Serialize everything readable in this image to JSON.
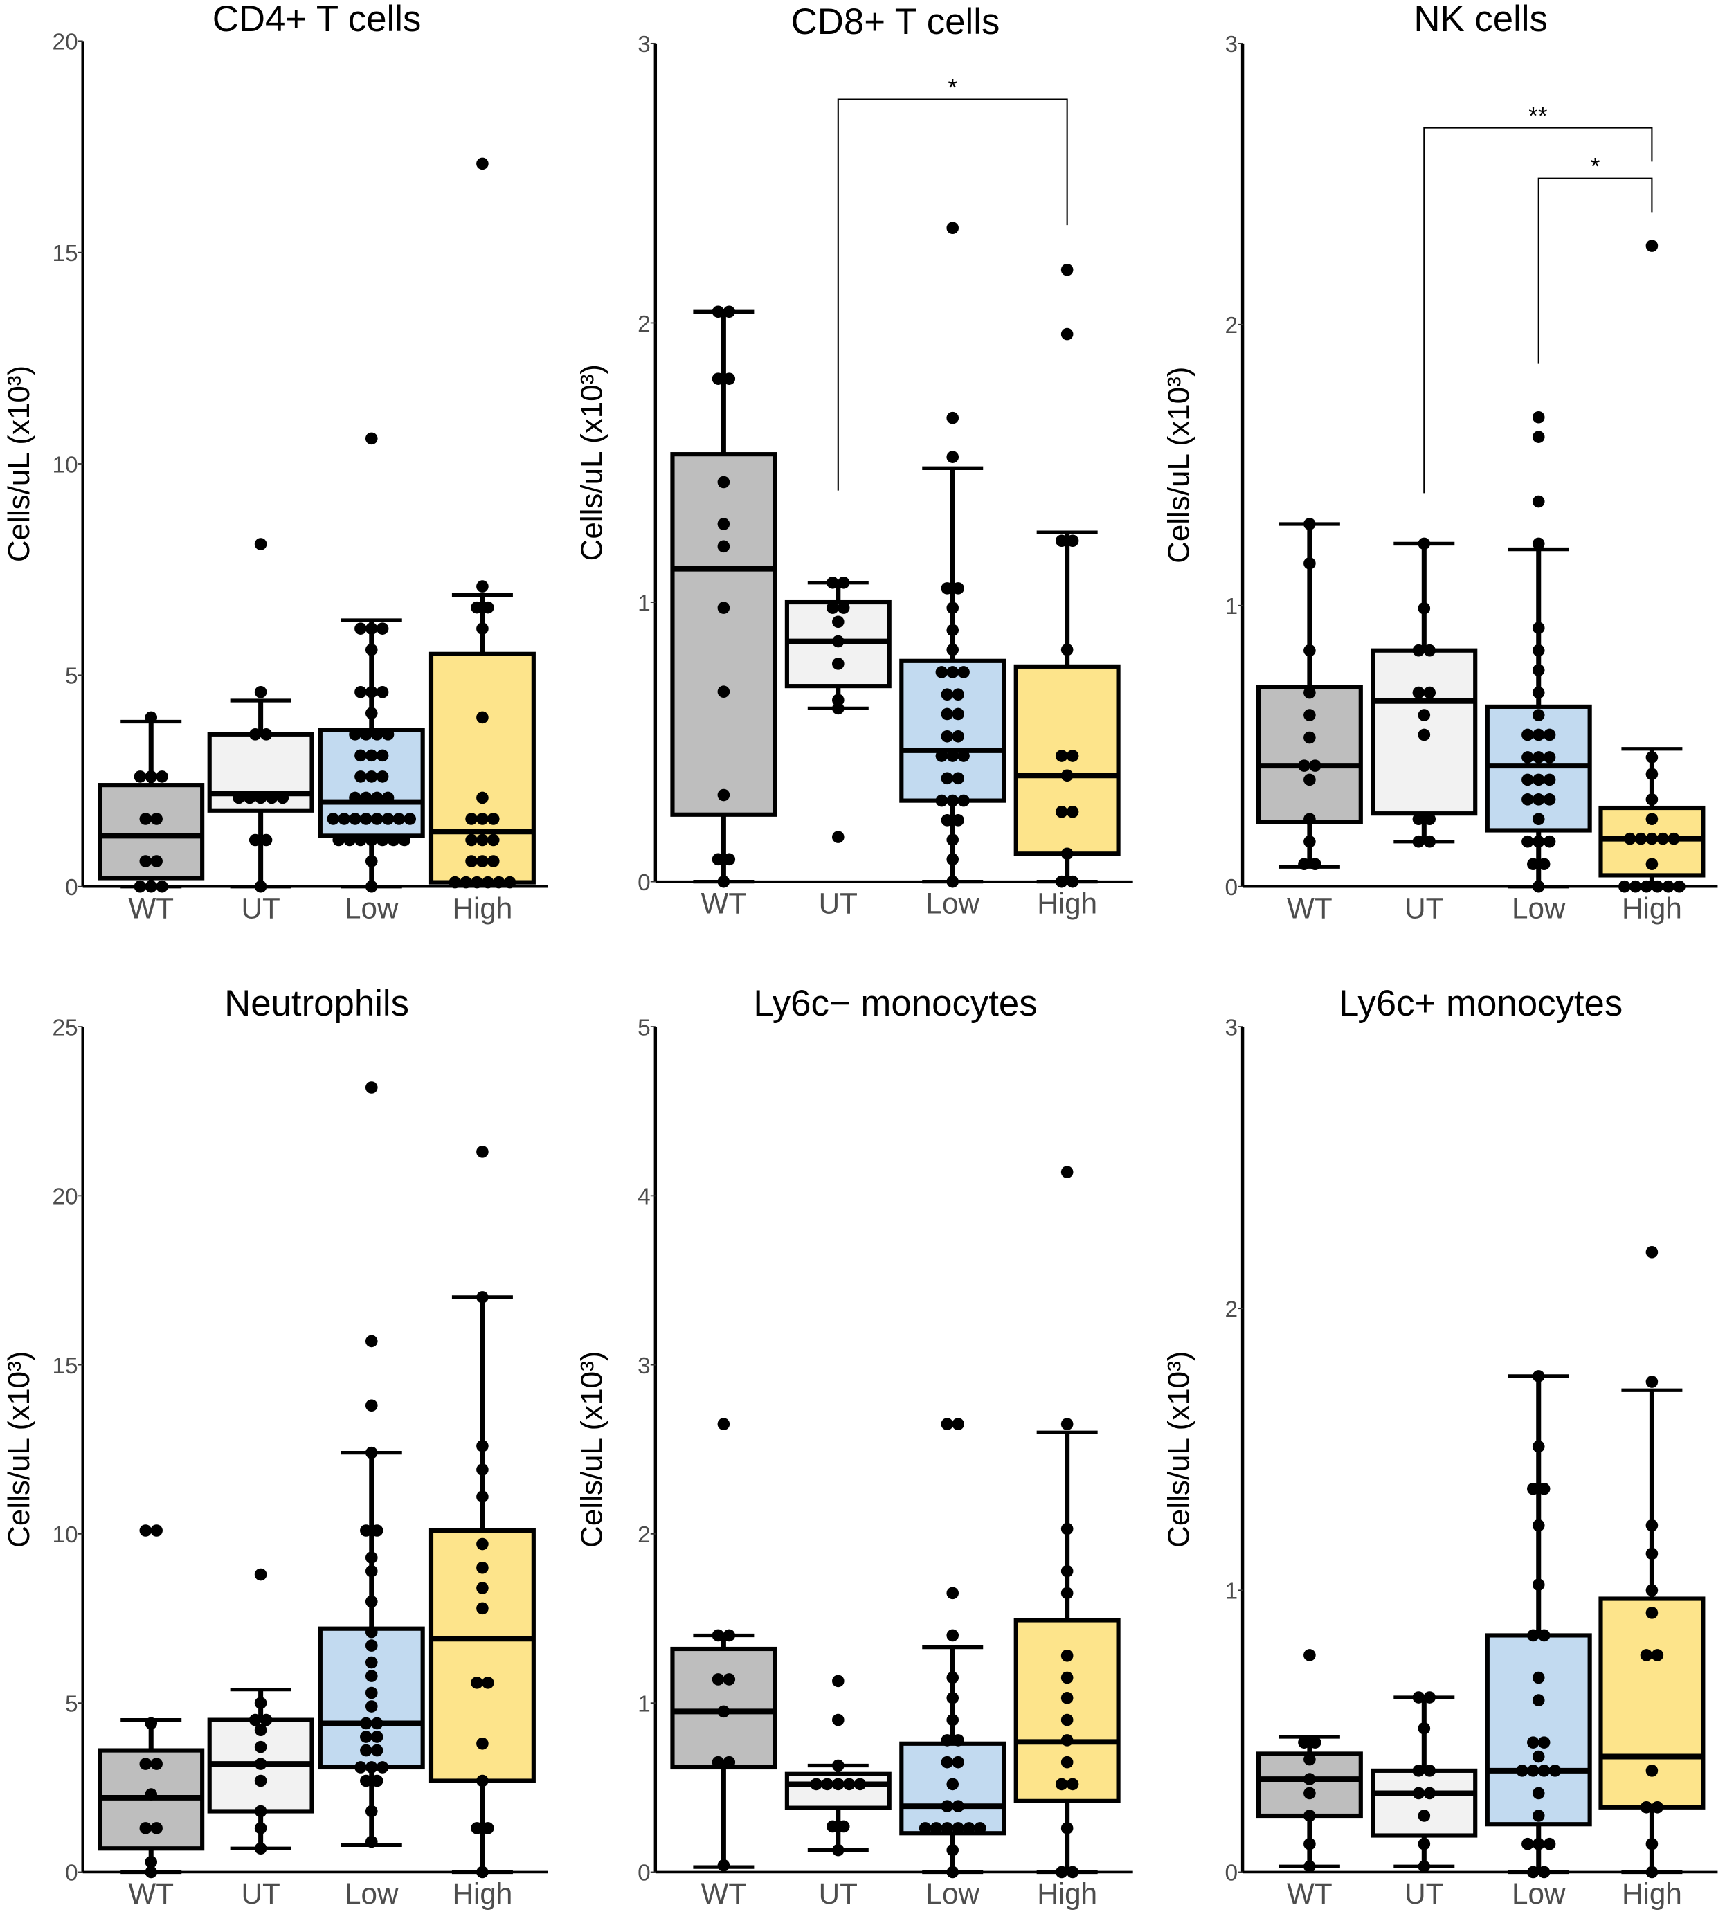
{
  "chart_data": [
    {
      "type": "box",
      "title": "CD4+ T cells",
      "ylabel": "Cells/uL (x10³)",
      "xlabel": "",
      "ylim": [
        0,
        20
      ],
      "yticks": [
        0,
        5,
        10,
        15,
        20
      ],
      "categories": [
        "WT",
        "UT",
        "Low",
        "High"
      ],
      "groups": [
        {
          "name": "WT",
          "q1": 0.2,
          "median": 1.2,
          "q3": 2.4,
          "whisker_low": 0,
          "whisker_high": 3.9,
          "points": [
            0,
            0,
            0,
            0.6,
            0.6,
            1.6,
            1.6,
            2.6,
            2.6,
            2.6,
            4.0
          ]
        },
        {
          "name": "UT",
          "q1": 1.8,
          "median": 2.2,
          "q3": 3.6,
          "whisker_low": 0,
          "whisker_high": 4.4,
          "points": [
            0,
            1.1,
            1.1,
            2.1,
            2.1,
            2.1,
            2.1,
            2.1,
            3.6,
            3.6,
            4.6,
            8.1
          ]
        },
        {
          "name": "Low",
          "q1": 1.2,
          "median": 2.0,
          "q3": 3.7,
          "whisker_low": 0,
          "whisker_high": 6.3,
          "points": [
            0,
            0.6,
            1.1,
            1.1,
            1.1,
            1.1,
            1.1,
            1.1,
            1.1,
            1.6,
            1.6,
            1.6,
            1.6,
            1.6,
            1.6,
            1.6,
            1.6,
            2.1,
            2.1,
            2.1,
            2.1,
            2.6,
            2.6,
            2.6,
            3.1,
            3.1,
            3.1,
            3.6,
            3.6,
            3.6,
            3.6,
            4.1,
            4.6,
            4.6,
            4.6,
            5.6,
            6.1,
            6.1,
            6.1,
            10.6
          ]
        },
        {
          "name": "High",
          "q1": 0.1,
          "median": 1.3,
          "q3": 5.5,
          "whisker_low": 0.1,
          "whisker_high": 6.9,
          "points": [
            0.1,
            0.1,
            0.1,
            0.1,
            0.1,
            0.1,
            0.6,
            0.6,
            0.6,
            1.1,
            1.1,
            1.1,
            1.6,
            1.6,
            1.6,
            2.1,
            4.0,
            6.1,
            6.6,
            6.6,
            7.1,
            17.1
          ]
        }
      ],
      "significance": []
    },
    {
      "type": "box",
      "title": "CD8+ T cells",
      "ylabel": "Cells/uL (x10³)",
      "xlabel": "",
      "ylim": [
        0,
        3
      ],
      "yticks": [
        0,
        1,
        2,
        3
      ],
      "categories": [
        "WT",
        "UT",
        "Low",
        "High"
      ],
      "groups": [
        {
          "name": "WT",
          "q1": 0.24,
          "median": 1.12,
          "q3": 1.53,
          "whisker_low": 0,
          "whisker_high": 2.04,
          "points": [
            0,
            0.08,
            0.08,
            0.31,
            0.68,
            0.98,
            1.2,
            1.28,
            1.43,
            1.8,
            1.8,
            2.04,
            2.04
          ]
        },
        {
          "name": "UT",
          "q1": 0.7,
          "median": 0.86,
          "q3": 1.0,
          "whisker_low": 0.62,
          "whisker_high": 1.07,
          "points": [
            0.16,
            0.62,
            0.65,
            0.78,
            0.86,
            0.93,
            0.98,
            0.98,
            1.07,
            1.07
          ]
        },
        {
          "name": "Low",
          "q1": 0.29,
          "median": 0.47,
          "q3": 0.79,
          "whisker_low": 0,
          "whisker_high": 1.48,
          "points": [
            0,
            0.08,
            0.15,
            0.22,
            0.22,
            0.29,
            0.29,
            0.29,
            0.37,
            0.37,
            0.45,
            0.45,
            0.45,
            0.52,
            0.52,
            0.6,
            0.6,
            0.67,
            0.67,
            0.75,
            0.75,
            0.75,
            0.83,
            0.9,
            0.98,
            1.05,
            1.05,
            1.52,
            1.66,
            2.34
          ]
        },
        {
          "name": "High",
          "q1": 0.1,
          "median": 0.38,
          "q3": 0.77,
          "whisker_low": 0,
          "whisker_high": 1.25,
          "points": [
            0,
            0,
            0.1,
            0.25,
            0.25,
            0.38,
            0.45,
            0.45,
            0.83,
            1.22,
            1.22,
            1.96,
            2.19
          ]
        }
      ],
      "significance": [
        {
          "from": "UT",
          "to": "High",
          "label": "*",
          "y": 2.8,
          "drop_from": 1.4,
          "drop_to": 2.35
        }
      ]
    },
    {
      "type": "box",
      "title": "NK cells",
      "ylabel": "Cells/uL (x10³)",
      "xlabel": "",
      "ylim": [
        0,
        3
      ],
      "yticks": [
        0,
        1,
        2,
        3
      ],
      "categories": [
        "WT",
        "UT",
        "Low",
        "High"
      ],
      "groups": [
        {
          "name": "WT",
          "q1": 0.23,
          "median": 0.43,
          "q3": 0.71,
          "whisker_low": 0.07,
          "whisker_high": 1.29,
          "points": [
            0.08,
            0.08,
            0.16,
            0.24,
            0.38,
            0.43,
            0.43,
            0.53,
            0.61,
            0.69,
            0.84,
            1.15,
            1.29
          ]
        },
        {
          "name": "UT",
          "q1": 0.26,
          "median": 0.66,
          "q3": 0.84,
          "whisker_low": 0.16,
          "whisker_high": 1.22,
          "points": [
            0.16,
            0.16,
            0.24,
            0.24,
            0.54,
            0.61,
            0.69,
            0.69,
            0.84,
            0.84,
            0.99,
            1.22
          ]
        },
        {
          "name": "Low",
          "q1": 0.2,
          "median": 0.43,
          "q3": 0.64,
          "whisker_low": 0,
          "whisker_high": 1.2,
          "points": [
            0,
            0.08,
            0.08,
            0.16,
            0.16,
            0.16,
            0.24,
            0.31,
            0.31,
            0.31,
            0.38,
            0.38,
            0.38,
            0.46,
            0.46,
            0.46,
            0.54,
            0.54,
            0.54,
            0.61,
            0.69,
            0.77,
            0.84,
            0.92,
            1.22,
            1.37,
            1.6,
            1.67
          ]
        },
        {
          "name": "High",
          "q1": 0.04,
          "median": 0.17,
          "q3": 0.28,
          "whisker_low": 0,
          "whisker_high": 0.49,
          "points": [
            0,
            0,
            0,
            0,
            0,
            0,
            0.08,
            0.17,
            0.17,
            0.17,
            0.17,
            0.17,
            0.24,
            0.31,
            0.4,
            0.46,
            2.28
          ]
        }
      ],
      "significance": [
        {
          "from": "UT",
          "to": "High",
          "label": "**",
          "y": 2.7,
          "drop_from": 1.4,
          "drop_to": 2.58
        },
        {
          "from": "Low",
          "to": "High",
          "label": "*",
          "y": 2.52,
          "drop_from": 1.86,
          "drop_to": 2.4
        }
      ]
    },
    {
      "type": "box",
      "title": "Neutrophils",
      "ylabel": "Cells/uL (x10³)",
      "xlabel": "",
      "ylim": [
        0,
        25
      ],
      "yticks": [
        0,
        5,
        10,
        15,
        20,
        25
      ],
      "categories": [
        "WT",
        "UT",
        "Low",
        "High"
      ],
      "groups": [
        {
          "name": "WT",
          "q1": 0.7,
          "median": 2.2,
          "q3": 3.6,
          "whisker_low": 0,
          "whisker_high": 4.5,
          "points": [
            0,
            0.3,
            1.3,
            1.3,
            2.3,
            3.2,
            3.2,
            4.4,
            10.1,
            10.1
          ]
        },
        {
          "name": "UT",
          "q1": 1.8,
          "median": 3.2,
          "q3": 4.5,
          "whisker_low": 0.7,
          "whisker_high": 5.4,
          "points": [
            0.7,
            1.3,
            1.8,
            2.7,
            3.2,
            3.7,
            4.2,
            4.5,
            4.5,
            5.0,
            8.8
          ]
        },
        {
          "name": "Low",
          "q1": 3.1,
          "median": 4.4,
          "q3": 7.2,
          "whisker_low": 0.8,
          "whisker_high": 12.4,
          "points": [
            0.9,
            1.8,
            2.7,
            2.7,
            3.1,
            3.1,
            3.1,
            3.6,
            3.6,
            4.0,
            4.0,
            4.4,
            4.4,
            4.9,
            5.3,
            5.8,
            6.2,
            6.7,
            7.1,
            8.0,
            8.9,
            9.3,
            10.1,
            10.1,
            12.4,
            13.8,
            15.7,
            23.2
          ]
        },
        {
          "name": "High",
          "q1": 2.7,
          "median": 6.9,
          "q3": 10.1,
          "whisker_low": 0,
          "whisker_high": 17.0,
          "points": [
            0,
            1.3,
            1.3,
            2.7,
            3.8,
            5.6,
            5.6,
            7.8,
            8.4,
            9.0,
            9.7,
            11.1,
            11.9,
            12.6,
            17.0,
            21.3
          ]
        }
      ],
      "significance": []
    },
    {
      "type": "box",
      "title": "Ly6c− monocytes",
      "ylabel": "Cells/uL (x10³)",
      "xlabel": "",
      "ylim": [
        0,
        5
      ],
      "yticks": [
        0,
        1,
        2,
        3,
        4,
        5
      ],
      "categories": [
        "WT",
        "UT",
        "Low",
        "High"
      ],
      "groups": [
        {
          "name": "WT",
          "q1": 0.62,
          "median": 0.95,
          "q3": 1.32,
          "whisker_low": 0.03,
          "whisker_high": 1.4,
          "points": [
            0.04,
            0.65,
            0.65,
            0.95,
            1.14,
            1.14,
            1.4,
            1.4,
            2.65
          ]
        },
        {
          "name": "UT",
          "q1": 0.38,
          "median": 0.52,
          "q3": 0.58,
          "whisker_low": 0.13,
          "whisker_high": 0.63,
          "points": [
            0.13,
            0.27,
            0.27,
            0.52,
            0.52,
            0.52,
            0.52,
            0.52,
            0.63,
            0.9,
            1.13
          ]
        },
        {
          "name": "Low",
          "q1": 0.23,
          "median": 0.39,
          "q3": 0.76,
          "whisker_low": 0,
          "whisker_high": 1.33,
          "points": [
            0,
            0.13,
            0.26,
            0.26,
            0.26,
            0.26,
            0.26,
            0.26,
            0.39,
            0.39,
            0.52,
            0.65,
            0.65,
            0.78,
            0.78,
            0.9,
            1.03,
            1.15,
            1.4,
            1.65,
            2.65,
            2.65
          ]
        },
        {
          "name": "High",
          "q1": 0.42,
          "median": 0.77,
          "q3": 1.49,
          "whisker_low": 0,
          "whisker_high": 2.6,
          "points": [
            0,
            0,
            0.26,
            0.52,
            0.52,
            0.65,
            0.78,
            0.9,
            1.03,
            1.15,
            1.28,
            1.65,
            1.78,
            2.03,
            2.65,
            4.14
          ]
        }
      ],
      "significance": []
    },
    {
      "type": "box",
      "title": "Ly6c+ monocytes",
      "ylabel": "Cells/uL (x10³)",
      "xlabel": "",
      "ylim": [
        0,
        3
      ],
      "yticks": [
        0,
        1,
        2,
        3
      ],
      "categories": [
        "WT",
        "UT",
        "Low",
        "High"
      ],
      "groups": [
        {
          "name": "WT",
          "q1": 0.2,
          "median": 0.33,
          "q3": 0.42,
          "whisker_low": 0.02,
          "whisker_high": 0.48,
          "points": [
            0.02,
            0.1,
            0.2,
            0.28,
            0.33,
            0.4,
            0.46,
            0.46,
            0.77
          ]
        },
        {
          "name": "UT",
          "q1": 0.13,
          "median": 0.28,
          "q3": 0.36,
          "whisker_low": 0.02,
          "whisker_high": 0.62,
          "points": [
            0.02,
            0.1,
            0.2,
            0.28,
            0.28,
            0.36,
            0.36,
            0.51,
            0.62,
            0.62
          ]
        },
        {
          "name": "Low",
          "q1": 0.17,
          "median": 0.36,
          "q3": 0.84,
          "whisker_low": 0,
          "whisker_high": 1.76,
          "points": [
            0,
            0,
            0.1,
            0.1,
            0.1,
            0.2,
            0.28,
            0.36,
            0.36,
            0.36,
            0.36,
            0.41,
            0.46,
            0.46,
            0.61,
            0.69,
            0.84,
            0.84,
            1.02,
            1.23,
            1.36,
            1.36,
            1.51,
            1.76
          ]
        },
        {
          "name": "High",
          "q1": 0.23,
          "median": 0.41,
          "q3": 0.97,
          "whisker_low": 0,
          "whisker_high": 1.71,
          "points": [
            0,
            0.1,
            0.23,
            0.23,
            0.36,
            0.77,
            0.77,
            0.92,
            1.0,
            1.13,
            1.23,
            1.74,
            2.2
          ]
        }
      ],
      "significance": []
    }
  ],
  "colors": {
    "WT": "#bebebe",
    "UT": "#f2f2f2",
    "Low": "#c2daf0",
    "High": "#fde48b",
    "axis": "#000000",
    "tick_text": "#4d4d4d"
  }
}
